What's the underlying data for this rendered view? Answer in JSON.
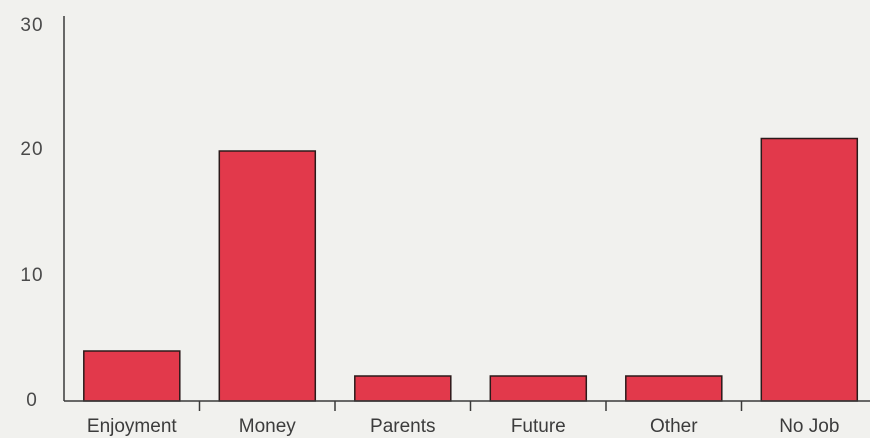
{
  "chart_data": {
    "type": "bar",
    "title": "",
    "xlabel": "",
    "ylabel": "",
    "categories": [
      "Enjoyment",
      "Money",
      "Parents",
      "Future",
      "Other",
      "No Job"
    ],
    "values": [
      4,
      20,
      2,
      2,
      2,
      21
    ],
    "ylim": [
      0,
      30
    ],
    "yticks": [
      "0",
      "10",
      "20",
      "30"
    ],
    "grid": false,
    "bar_color": "#e2394b"
  }
}
